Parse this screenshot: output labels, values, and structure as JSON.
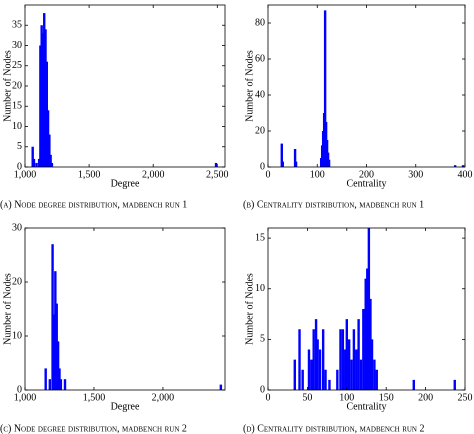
{
  "chart_data": [
    {
      "type": "bar",
      "caption": "(a) Node degree distribution, madbench run 1",
      "xlabel": "Degree",
      "ylabel": "Number of Nodes",
      "color": "#0000ff",
      "x": [
        1060,
        1070,
        1090,
        1110,
        1120,
        1130,
        1140,
        1150,
        1160,
        1170,
        1180,
        1190,
        1200,
        1210,
        2490
      ],
      "values": [
        5,
        2,
        1,
        2,
        30,
        35,
        33,
        38,
        34,
        26,
        14,
        8,
        3,
        1,
        1
      ],
      "xlim": [
        1000,
        2560
      ],
      "xticks": [
        {
          "value": 1000,
          "label": "1,000"
        },
        {
          "value": 1500,
          "label": "1,500"
        },
        {
          "value": 2000,
          "label": "2,000"
        },
        {
          "value": 2500,
          "label": "2,500"
        }
      ],
      "ylim": [
        0,
        40
      ],
      "yticks": [
        0,
        5,
        10,
        15,
        20,
        25,
        30,
        35
      ]
    },
    {
      "type": "bar",
      "caption": "(b) Centrality distribution, madbench run 1",
      "xlabel": "Centrality",
      "ylabel": "Number of Nodes",
      "color": "#0000ff",
      "x": [
        28,
        30,
        55,
        57,
        108,
        110,
        112,
        114,
        116,
        118,
        120,
        122,
        124,
        380,
        396
      ],
      "values": [
        13,
        3,
        10,
        3,
        5,
        12,
        20,
        30,
        87,
        25,
        15,
        8,
        4,
        1,
        1
      ],
      "xlim": [
        0,
        400
      ],
      "xticks": [
        0,
        100,
        200,
        300,
        400
      ],
      "ylim": [
        0,
        90
      ],
      "yticks": [
        0,
        20,
        40,
        60,
        80
      ]
    },
    {
      "type": "bar",
      "caption": "(c) Node degree distribution, madbench run 2",
      "xlabel": "Degree",
      "ylabel": "Number of Nodes",
      "color": "#0000ff",
      "x": [
        1150,
        1180,
        1200,
        1210,
        1220,
        1230,
        1240,
        1250,
        1260,
        1290,
        2420
      ],
      "values": [
        4,
        2,
        27,
        14,
        22,
        16,
        9,
        4,
        2,
        2,
        1
      ],
      "xlim": [
        1000,
        2450
      ],
      "xticks": [
        {
          "value": 1000,
          "label": "1,000"
        },
        {
          "value": 1500,
          "label": "1,500"
        },
        {
          "value": 2000,
          "label": "2,000"
        }
      ],
      "ylim": [
        0,
        30
      ],
      "yticks": [
        0,
        10,
        20,
        30
      ]
    },
    {
      "type": "bar",
      "caption": "(d) Centrality distribution, madbench run 2",
      "xlabel": "Centrality",
      "ylabel": "Number of Nodes",
      "color": "#0000ff",
      "x": [
        34,
        40,
        44,
        52,
        55,
        58,
        61,
        63,
        66,
        70,
        73,
        78,
        88,
        92,
        95,
        98,
        100,
        103,
        106,
        109,
        112,
        115,
        118,
        121,
        124,
        126,
        128,
        130,
        132,
        135,
        138,
        185,
        237
      ],
      "values": [
        3,
        6,
        2,
        4,
        3,
        6,
        7,
        5,
        4,
        6,
        2,
        1,
        2,
        6,
        6,
        4,
        7,
        5,
        3,
        6,
        4,
        7,
        3,
        8,
        11,
        12,
        16,
        9,
        5,
        3,
        2,
        1,
        1
      ],
      "xlim": [
        0,
        250
      ],
      "xticks": [
        0,
        50,
        100,
        150,
        200,
        250
      ],
      "ylim": [
        0,
        16
      ],
      "yticks": [
        0,
        5,
        10,
        15
      ]
    }
  ]
}
